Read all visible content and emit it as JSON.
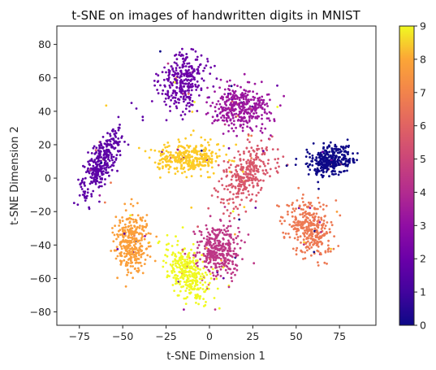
{
  "chart_data": {
    "type": "scatter",
    "title": "t-SNE on images of handwritten digits in MNIST",
    "xlabel": "t-SNE Dimension 1",
    "ylabel": "t-SNE Dimension 2",
    "xlim": [
      -88,
      96
    ],
    "ylim": [
      -88,
      91
    ],
    "xticks": [
      -75,
      -50,
      -25,
      0,
      25,
      50,
      75
    ],
    "yticks": [
      -80,
      -60,
      -40,
      -20,
      0,
      20,
      40,
      60,
      80
    ],
    "colormap": "plasma",
    "color_range": [
      0,
      9
    ],
    "colorbar_ticks": [
      0,
      1,
      2,
      3,
      4,
      5,
      6,
      7,
      8,
      9
    ],
    "grid": false,
    "legend": "none",
    "clusters": [
      {
        "label": 0,
        "color": "#0d0887",
        "center": [
          70,
          10
        ],
        "spread": [
          10,
          7
        ],
        "count": 320,
        "rotation": 20
      },
      {
        "label": 1,
        "color": "#5c01a6",
        "center": [
          -62,
          10
        ],
        "spread": [
          6,
          19
        ],
        "count": 320,
        "rotation": -28
      },
      {
        "label": 2,
        "color": "#6a00a8",
        "center": [
          -15,
          58
        ],
        "spread": [
          9,
          14
        ],
        "count": 300,
        "rotation": -20
      },
      {
        "label": 3,
        "color": "#9c179e",
        "center": [
          18,
          43
        ],
        "spread": [
          13,
          11
        ],
        "count": 360,
        "rotation": 0
      },
      {
        "label": 4,
        "color": "#bd3786",
        "center": [
          5,
          -43
        ],
        "spread": [
          10,
          14
        ],
        "count": 340,
        "rotation": 0
      },
      {
        "label": 5,
        "color": "#d8576b",
        "center": [
          22,
          2
        ],
        "spread": [
          9,
          17
        ],
        "count": 300,
        "rotation": -40
      },
      {
        "label": 6,
        "color": "#ed7953",
        "center": [
          58,
          -30
        ],
        "spread": [
          10,
          14
        ],
        "count": 320,
        "rotation": 25
      },
      {
        "label": 7,
        "color": "#fb9f3a",
        "center": [
          -45,
          -38
        ],
        "spread": [
          8,
          14
        ],
        "count": 330,
        "rotation": 0
      },
      {
        "label": 8,
        "color": "#fdca26",
        "center": [
          -12,
          12
        ],
        "spread": [
          15,
          7
        ],
        "count": 330,
        "rotation": 0
      },
      {
        "label": 9,
        "color": "#f0f921",
        "center": [
          -12,
          -58
        ],
        "spread": [
          8,
          15
        ],
        "count": 300,
        "rotation": 30
      }
    ]
  }
}
